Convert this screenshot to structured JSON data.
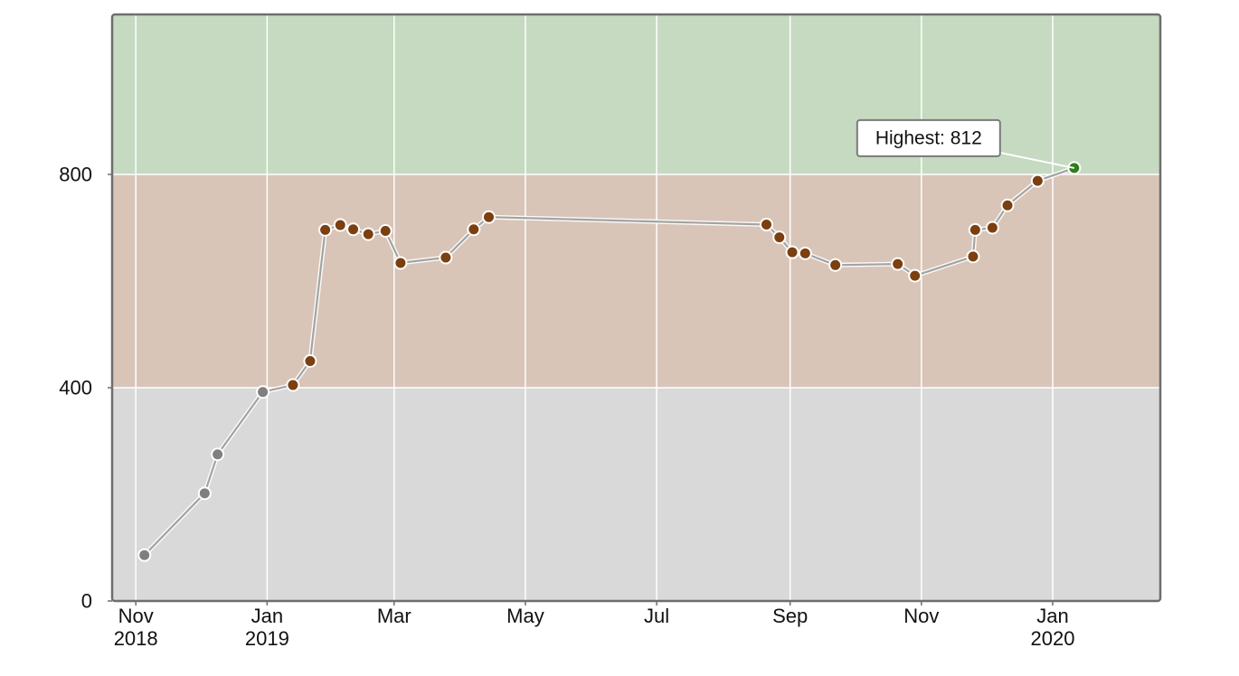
{
  "chart_data": {
    "type": "line",
    "title": "",
    "xlabel": "",
    "ylabel": "",
    "ylim": [
      0,
      1100
    ],
    "xlim": [
      "2018-10-21",
      "2020-02-20"
    ],
    "grid": true,
    "legend": "none",
    "bands": [
      {
        "from": 0,
        "to": 400,
        "color": "#d9d9d9"
      },
      {
        "from": 400,
        "to": 800,
        "color": "#d8c5b8"
      },
      {
        "from": 800,
        "to": 1100,
        "color": "#c5dac0"
      }
    ],
    "y_ticks": [
      {
        "value": 0,
        "label": "0"
      },
      {
        "value": 400,
        "label": "400"
      },
      {
        "value": 800,
        "label": "800"
      }
    ],
    "x_ticks": [
      {
        "date": "2018-11-01",
        "label": "Nov",
        "sub": "2018"
      },
      {
        "date": "2019-01-01",
        "label": "Jan",
        "sub": "2019"
      },
      {
        "date": "2019-03-01",
        "label": "Mar",
        "sub": ""
      },
      {
        "date": "2019-05-01",
        "label": "May",
        "sub": ""
      },
      {
        "date": "2019-07-01",
        "label": "Jul",
        "sub": ""
      },
      {
        "date": "2019-09-01",
        "label": "Sep",
        "sub": ""
      },
      {
        "date": "2019-11-01",
        "label": "Nov",
        "sub": ""
      },
      {
        "date": "2020-01-01",
        "label": "Jan",
        "sub": "2020"
      }
    ],
    "point_colors": {
      "low": "#7f7f7f",
      "mid": "#7b3f10",
      "high": "#2f7d1e"
    },
    "series": [
      {
        "points": [
          {
            "x": "2018-11-05",
            "y": 86
          },
          {
            "x": "2018-12-03",
            "y": 202
          },
          {
            "x": "2018-12-09",
            "y": 275
          },
          {
            "x": "2018-12-30",
            "y": 392
          },
          {
            "x": "2019-01-13",
            "y": 405
          },
          {
            "x": "2019-01-21",
            "y": 450
          },
          {
            "x": "2019-01-28",
            "y": 696
          },
          {
            "x": "2019-02-04",
            "y": 705
          },
          {
            "x": "2019-02-10",
            "y": 697
          },
          {
            "x": "2019-02-17",
            "y": 688
          },
          {
            "x": "2019-02-25",
            "y": 694
          },
          {
            "x": "2019-03-04",
            "y": 634
          },
          {
            "x": "2019-03-25",
            "y": 644
          },
          {
            "x": "2019-04-07",
            "y": 697
          },
          {
            "x": "2019-04-14",
            "y": 720
          },
          {
            "x": "2019-08-21",
            "y": 706
          },
          {
            "x": "2019-08-27",
            "y": 682
          },
          {
            "x": "2019-09-02",
            "y": 654
          },
          {
            "x": "2019-09-08",
            "y": 652
          },
          {
            "x": "2019-09-22",
            "y": 630
          },
          {
            "x": "2019-10-21",
            "y": 632
          },
          {
            "x": "2019-10-29",
            "y": 610
          },
          {
            "x": "2019-11-25",
            "y": 646
          },
          {
            "x": "2019-11-26",
            "y": 696
          },
          {
            "x": "2019-12-04",
            "y": 700
          },
          {
            "x": "2019-12-11",
            "y": 742
          },
          {
            "x": "2019-12-25",
            "y": 788
          },
          {
            "x": "2020-01-11",
            "y": 812
          }
        ]
      }
    ],
    "annotation": {
      "text": "Highest: 812",
      "x": "2020-01-11",
      "y": 812
    }
  }
}
